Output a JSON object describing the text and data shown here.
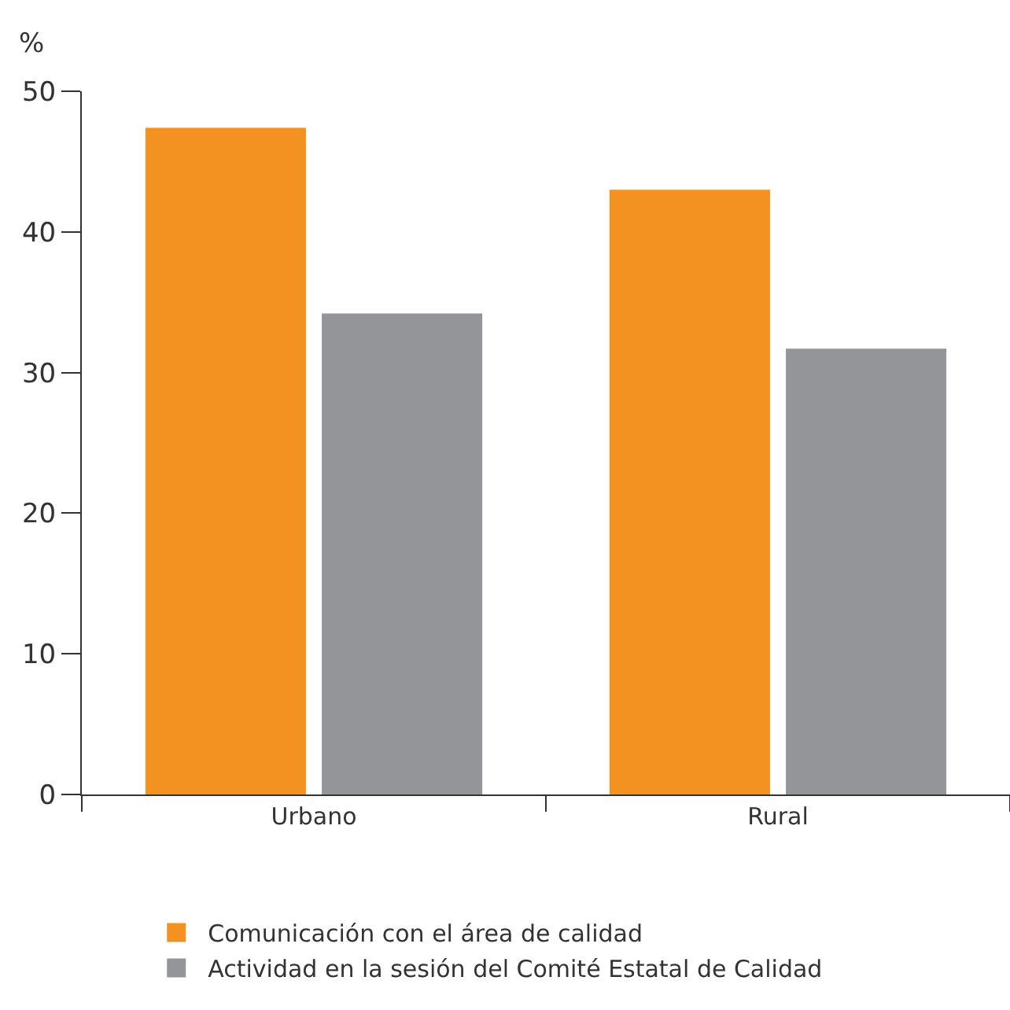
{
  "chart_data": {
    "type": "bar",
    "ylabel": "%",
    "categories": [
      "Urbano",
      "Rural"
    ],
    "series": [
      {
        "name": "Comunicación con el área de calidad",
        "color": "#f39220",
        "values": [
          47.4,
          43.0
        ]
      },
      {
        "name": "Actividad en la sesión del Comité Estatal de Calidad",
        "color": "#939598",
        "values": [
          34.2,
          31.7
        ]
      }
    ],
    "ylim": [
      0,
      50
    ],
    "yticks": [
      0,
      10,
      20,
      30,
      40,
      50
    ],
    "grid": false,
    "legend": "bottom"
  }
}
